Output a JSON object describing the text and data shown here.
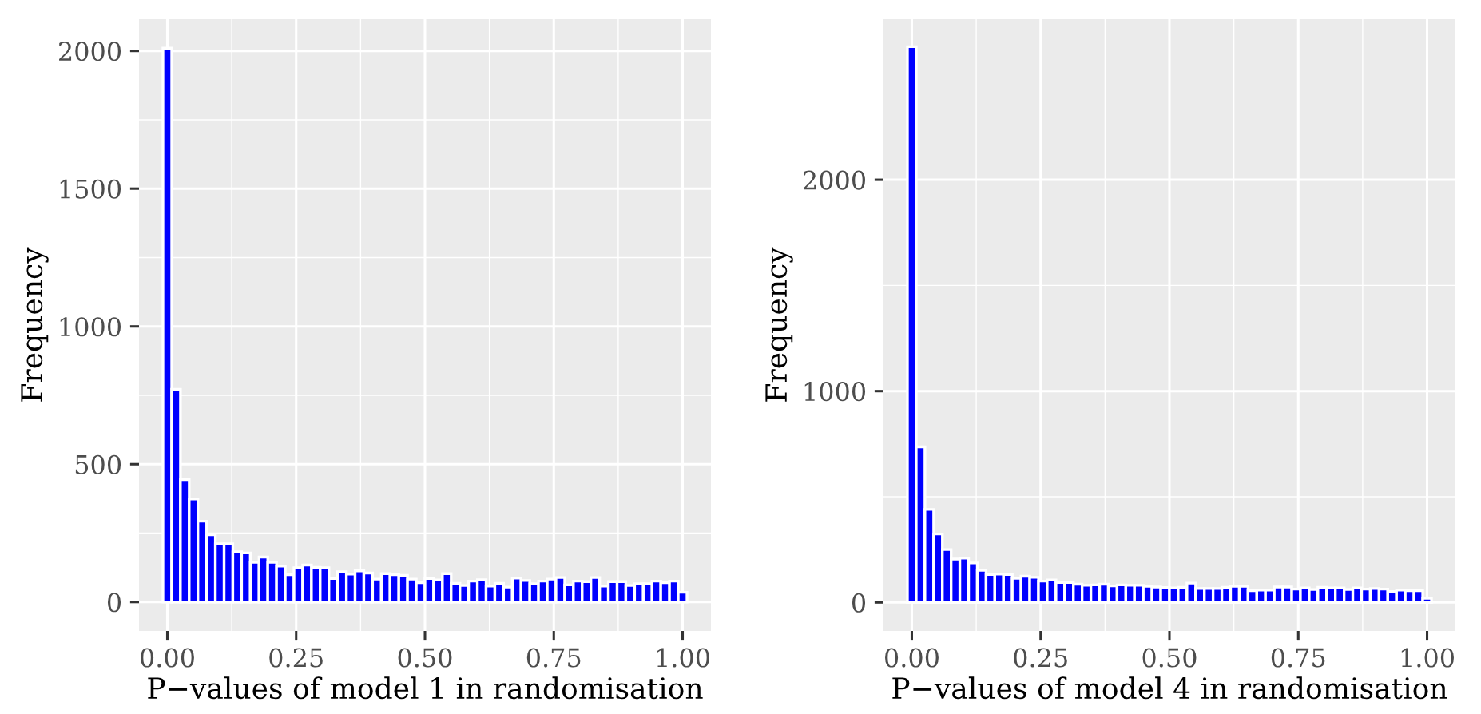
{
  "chart_data": [
    {
      "type": "histogram",
      "xlabel": "P−values of model 1 in randomisation",
      "ylabel": "Frequency",
      "color": "#0000ff",
      "grid": true,
      "bins": [
        -0.0085,
        0.0085,
        0.0254,
        0.0424,
        0.0593,
        0.0763,
        0.0932,
        0.1102,
        0.1271,
        0.1441,
        0.161,
        0.178,
        0.1949,
        0.2119,
        0.2288,
        0.2458,
        0.2627,
        0.2797,
        0.2966,
        0.3136,
        0.3305,
        0.3475,
        0.3644,
        0.3814,
        0.3983,
        0.4153,
        0.4322,
        0.4492,
        0.4661,
        0.4831,
        0.5,
        0.5169,
        0.5339,
        0.5508,
        0.5678,
        0.5847,
        0.6017,
        0.6186,
        0.6356,
        0.6525,
        0.6695,
        0.6864,
        0.7034,
        0.7203,
        0.7373,
        0.7542,
        0.7712,
        0.7881,
        0.8051,
        0.822,
        0.839,
        0.8559,
        0.8729,
        0.8898,
        0.9068,
        0.9237,
        0.9407,
        0.9576,
        0.9746,
        0.9915,
        1.0085
      ],
      "values": [
        2010,
        772,
        444,
        374,
        293,
        244,
        211,
        211,
        182,
        178,
        144,
        163,
        144,
        130,
        99,
        124,
        134,
        126,
        124,
        85,
        110,
        101,
        113,
        105,
        83,
        103,
        99,
        97,
        83,
        70,
        85,
        80,
        103,
        68,
        60,
        76,
        81,
        58,
        68,
        54,
        87,
        78,
        66,
        76,
        83,
        89,
        62,
        76,
        74,
        89,
        58,
        74,
        74,
        60,
        66,
        66,
        76,
        70,
        76,
        35
      ],
      "xlim": [
        -0.055,
        1.055
      ],
      "ylim": [
        -105,
        2115
      ],
      "xticks": [
        {
          "value": 0,
          "label": "0.00"
        },
        {
          "value": 0.25,
          "label": "0.25"
        },
        {
          "value": 0.5,
          "label": "0.50"
        },
        {
          "value": 0.75,
          "label": "0.75"
        },
        {
          "value": 1,
          "label": "1.00"
        }
      ],
      "yticks": [
        0,
        500,
        1000,
        1500,
        2000
      ]
    },
    {
      "type": "histogram",
      "xlabel": "P−values of model 4 in randomisation",
      "ylabel": "Frequency",
      "color": "#0000ff",
      "grid": true,
      "bins": [
        -0.0085,
        0.0085,
        0.0254,
        0.0424,
        0.0593,
        0.0763,
        0.0932,
        0.1102,
        0.1271,
        0.1441,
        0.161,
        0.178,
        0.1949,
        0.2119,
        0.2288,
        0.2458,
        0.2627,
        0.2797,
        0.2966,
        0.3136,
        0.3305,
        0.3475,
        0.3644,
        0.3814,
        0.3983,
        0.4153,
        0.4322,
        0.4492,
        0.4661,
        0.4831,
        0.5,
        0.5169,
        0.5339,
        0.5508,
        0.5678,
        0.5847,
        0.6017,
        0.6186,
        0.6356,
        0.6525,
        0.6695,
        0.6864,
        0.7034,
        0.7203,
        0.7373,
        0.7542,
        0.7712,
        0.7881,
        0.8051,
        0.822,
        0.839,
        0.8559,
        0.8729,
        0.8898,
        0.9068,
        0.9237,
        0.9407,
        0.9576,
        0.9746,
        0.9915,
        1.0085
      ],
      "values": [
        2630,
        736,
        440,
        324,
        250,
        205,
        210,
        187,
        152,
        132,
        134,
        132,
        114,
        124,
        119,
        101,
        106,
        94,
        94,
        86,
        81,
        83,
        86,
        78,
        83,
        81,
        81,
        76,
        73,
        70,
        68,
        71,
        91,
        66,
        66,
        66,
        71,
        76,
        76,
        56,
        58,
        58,
        73,
        73,
        63,
        68,
        61,
        71,
        68,
        68,
        61,
        68,
        63,
        66,
        63,
        51,
        58,
        56,
        56,
        20
      ],
      "xlim": [
        -0.055,
        1.055
      ],
      "ylim": [
        -135,
        2760
      ],
      "xticks": [
        {
          "value": 0,
          "label": "0.00"
        },
        {
          "value": 0.25,
          "label": "0.25"
        },
        {
          "value": 0.5,
          "label": "0.50"
        },
        {
          "value": 0.75,
          "label": "0.75"
        },
        {
          "value": 1,
          "label": "1.00"
        }
      ],
      "yticks": [
        0,
        1000,
        2000
      ]
    }
  ]
}
